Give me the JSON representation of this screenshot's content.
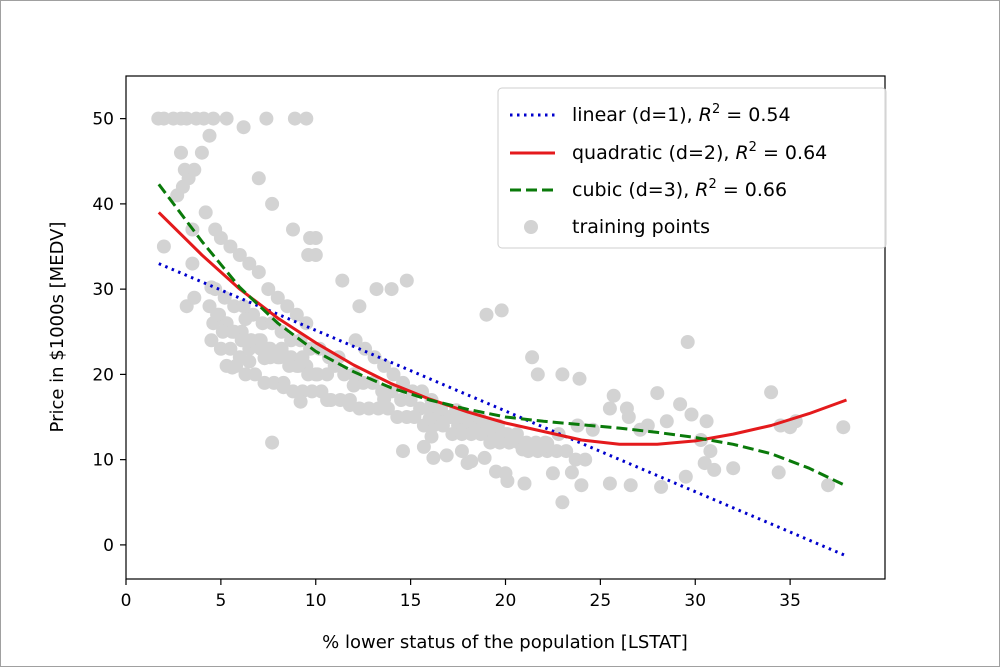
{
  "chart_data": {
    "type": "scatter",
    "title": "",
    "xlabel": "% lower status of the population [LSTAT]",
    "ylabel": "Price in $1000s [MEDV]",
    "xlim": [
      0,
      40
    ],
    "ylim": [
      -4,
      55
    ],
    "xticks": [
      0,
      5,
      10,
      15,
      20,
      25,
      30,
      35
    ],
    "yticks": [
      0,
      10,
      20,
      30,
      40,
      50
    ],
    "grid": false,
    "legend_position": "top-right",
    "series": [
      {
        "name": "linear (d=1), R^2 = 0.54",
        "legend_label": "linear (d=1), ",
        "r2_text": " = 0.54",
        "kind": "line",
        "style": "dotted",
        "color": "#0000cc",
        "x": [
          1.73,
          37.97
        ],
        "y": [
          33.0,
          -1.3
        ]
      },
      {
        "name": "quadratic (d=2), R^2 = 0.64",
        "legend_label": "quadratic (d=2), ",
        "r2_text": " = 0.64",
        "kind": "line",
        "style": "solid",
        "color": "#e41a1c",
        "x": [
          1.73,
          4,
          6,
          8,
          10,
          12,
          14,
          16,
          18,
          20,
          22,
          24,
          26,
          28,
          30,
          32,
          34,
          36,
          37.97
        ],
        "y": [
          39.0,
          34.0,
          30.0,
          26.6,
          23.7,
          21.1,
          18.9,
          17.1,
          15.6,
          14.3,
          13.3,
          12.3,
          11.8,
          11.8,
          12.2,
          13.0,
          14.0,
          15.4,
          17.0
        ]
      },
      {
        "name": "cubic (d=3), R^2 = 0.66",
        "legend_label": "cubic (d=3), ",
        "r2_text": " = 0.66",
        "kind": "line",
        "style": "dashed",
        "color": "#0a7a0a",
        "x": [
          1.73,
          4,
          6,
          8,
          10,
          12,
          14,
          16,
          18,
          20,
          22,
          24,
          26,
          28,
          30,
          32,
          34,
          36,
          37.97
        ],
        "y": [
          42.3,
          35.6,
          30.2,
          26.0,
          22.7,
          20.3,
          18.4,
          17.0,
          15.9,
          15.0,
          14.5,
          14.1,
          13.7,
          13.2,
          12.6,
          11.8,
          10.7,
          9.0,
          6.9
        ]
      },
      {
        "name": "training points",
        "legend_label": "training points",
        "kind": "scatter",
        "color": "#d3d3d3",
        "x": [
          1.7,
          2.0,
          2.5,
          2.9,
          3.2,
          3.7,
          4.1,
          4.6,
          5.3,
          7.4,
          8.9,
          9.5,
          6.2,
          2.9,
          3.1,
          3.3,
          3.6,
          4.0,
          4.4,
          2.7,
          3.0,
          3.5,
          4.2,
          4.7,
          5.0,
          5.5,
          6.0,
          6.5,
          7.0,
          7.5,
          8.0,
          8.5,
          9.0,
          9.5,
          9.6,
          10.0,
          4.4,
          4.9,
          5.3,
          5.7,
          6.1,
          6.6,
          7.1,
          7.6,
          8.2,
          8.7,
          9.3,
          4.5,
          5.0,
          5.5,
          6.0,
          6.5,
          7.0,
          7.5,
          8.0,
          8.5,
          9.0,
          9.5,
          10.0,
          4.6,
          5.1,
          5.6,
          6.1,
          6.6,
          7.1,
          7.6,
          8.1,
          8.6,
          9.1,
          9.6,
          10.1,
          10.6,
          4.7,
          5.2,
          5.7,
          6.2,
          6.7,
          7.2,
          7.7,
          8.2,
          8.7,
          9.2,
          9.7,
          10.2,
          10.7,
          11.2,
          5.3,
          5.8,
          6.3,
          6.8,
          7.3,
          7.8,
          8.3,
          8.8,
          9.3,
          9.8,
          10.3,
          10.8,
          11.3,
          11.8,
          12.3,
          12.8,
          13.3,
          13.8,
          14.3,
          14.8,
          11.0,
          11.5,
          12.0,
          12.5,
          13.0,
          13.5,
          14.0,
          14.5,
          15.0,
          15.5,
          16.0,
          16.5,
          17.0,
          17.5,
          18.0,
          18.5,
          19.0,
          19.5,
          20.0,
          12.1,
          12.6,
          13.1,
          13.6,
          14.1,
          14.6,
          15.1,
          15.6,
          16.1,
          16.6,
          17.1,
          17.6,
          18.1,
          18.6,
          19.1,
          19.6,
          20.1,
          20.6,
          21.1,
          21.6,
          22.1,
          15.2,
          15.7,
          16.2,
          16.7,
          17.2,
          17.7,
          18.2,
          18.7,
          19.2,
          19.7,
          20.2,
          20.7,
          21.2,
          21.7,
          22.2,
          22.7,
          23.2,
          23.7,
          24.2,
          2.0,
          3.5,
          7.0,
          7.7,
          8.8,
          9.7,
          10.0,
          11.4,
          12.3,
          13.2,
          14.0,
          14.8,
          19.0,
          19.8,
          21.4,
          21.7,
          23.0,
          23.9,
          25.7,
          27.1,
          28.0,
          29.6,
          29.8,
          30.3,
          30.6,
          34.0,
          35.0,
          37.0,
          37.8,
          34.4,
          31.0,
          30.5,
          29.5,
          28.2,
          26.6,
          25.5,
          24.0,
          23.5,
          23.0,
          22.5,
          21.0,
          20.1,
          20.0,
          19.5,
          18.9,
          18.0,
          17.7,
          16.9,
          16.2,
          15.7,
          14.6,
          26.5,
          27.5,
          28.5,
          23.8,
          24.6,
          25.5,
          26.4,
          30.8,
          29.2,
          32.0,
          34.5,
          35.3,
          5.6,
          6.5,
          7.3,
          8.0,
          3.2,
          3.6,
          4.8,
          6.3,
          8.3,
          9.2,
          10.6,
          12.0,
          13.6,
          16.0,
          17.4,
          18.4,
          20.9,
          21.9,
          22.8,
          4.5,
          7.7,
          11.8,
          16.1,
          18.2,
          22.2
        ],
        "y": [
          50,
          50,
          50,
          50,
          50,
          50,
          50,
          50,
          50,
          50,
          50,
          50,
          49,
          46,
          44,
          43,
          44,
          46,
          48,
          41,
          42,
          37,
          39,
          37,
          36,
          35,
          34,
          33,
          32,
          30,
          29,
          28,
          27,
          26,
          34,
          36,
          28,
          27,
          26,
          25,
          25,
          24,
          24,
          23,
          23,
          22,
          22,
          24,
          23,
          23,
          22,
          23,
          24,
          23,
          22,
          22,
          21,
          21,
          20,
          26,
          25,
          25,
          24,
          24,
          23,
          22,
          22,
          21,
          21,
          20,
          20,
          20,
          30,
          29,
          28,
          28,
          27,
          26,
          26,
          25,
          24,
          24,
          23,
          23,
          22,
          22,
          21,
          21,
          20,
          20,
          19,
          19,
          19,
          18,
          18,
          18,
          18,
          17,
          17,
          17,
          16,
          16,
          16,
          16,
          15,
          15,
          21,
          20,
          20,
          19,
          19,
          18,
          18,
          17,
          17,
          16,
          16,
          15,
          15,
          14,
          14,
          14,
          13,
          13,
          13,
          24,
          23,
          22,
          21,
          20,
          19,
          18,
          18,
          17,
          16,
          15,
          15,
          15,
          15,
          14,
          14,
          13,
          13,
          12,
          12,
          12,
          15,
          14,
          14,
          14,
          13,
          13,
          13,
          13,
          12,
          12,
          12,
          12,
          11,
          11,
          11,
          11,
          11,
          10,
          10,
          35,
          33,
          43,
          40,
          37,
          36,
          34,
          31,
          28,
          30,
          30,
          31,
          27,
          27.5,
          22,
          20,
          20,
          19.5,
          17.5,
          13.5,
          17.8,
          23.8,
          15.3,
          12.3,
          14.5,
          17.9,
          13.8,
          7.0,
          13.8,
          8.5,
          8.8,
          9.6,
          8.0,
          6.8,
          7.0,
          7.2,
          7.0,
          8.5,
          5.0,
          8.4,
          7.2,
          7.5,
          8.4,
          8.6,
          10.2,
          9.6,
          11.0,
          10.5,
          10.2,
          11.5,
          11.0,
          15.0,
          14.0,
          14.5,
          14.0,
          13.5,
          16.0,
          16.0,
          11.0,
          16.5,
          9.0,
          14.0,
          14.5,
          20.8,
          21.5,
          21.9,
          22.1,
          28.0,
          29.0,
          27.0,
          26.5,
          18.5,
          16.8,
          17.0,
          18.7,
          17.1,
          14.8,
          15.8,
          13.2,
          11.2,
          11.4,
          13.0,
          30.2,
          12.0,
          16.4,
          12.7,
          9.8,
          11.9
        ]
      }
    ]
  }
}
